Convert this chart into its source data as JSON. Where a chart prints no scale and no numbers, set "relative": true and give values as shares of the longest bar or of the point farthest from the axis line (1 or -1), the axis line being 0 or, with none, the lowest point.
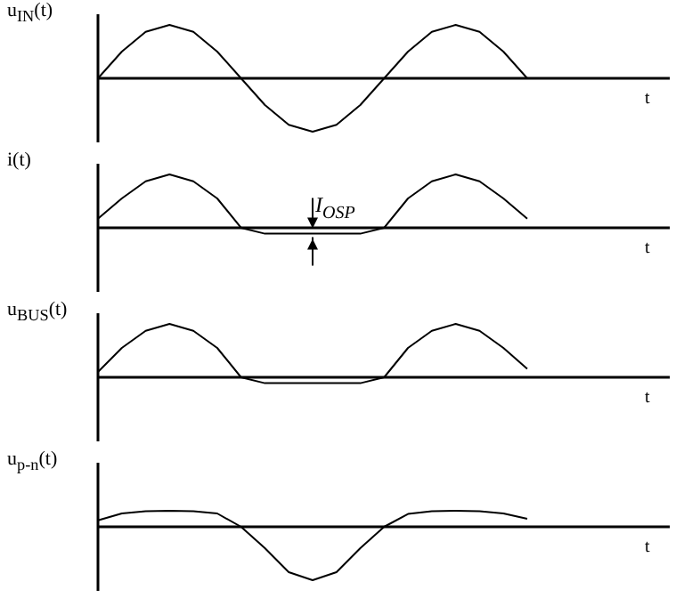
{
  "chart_data": [
    {
      "type": "line",
      "relative": true,
      "ylabel": "u$_{IN}$(t)",
      "xlabel": "t",
      "categories": [
        null,
        null,
        null,
        null,
        null,
        null,
        null,
        null,
        null,
        null,
        null,
        null,
        null,
        null,
        null,
        null,
        null,
        null,
        null
      ],
      "series": [
        {
          "color": "#000000",
          "values": [
            0,
            0.5,
            0.87,
            1,
            0.87,
            0.5,
            0,
            -0.5,
            -0.87,
            -1,
            -0.87,
            -0.5,
            0,
            0.5,
            0.87,
            1,
            0.87,
            0.5,
            0
          ]
        }
      ],
      "marker": "none",
      "line_style": "solid"
    },
    {
      "type": "line",
      "relative": true,
      "ylabel": "i(t)",
      "xlabel": "t",
      "categories": [
        null,
        null,
        null,
        null,
        null,
        null,
        null,
        null,
        null,
        null,
        null,
        null,
        null,
        null,
        null,
        null,
        null,
        null,
        null
      ],
      "series": [
        {
          "color": "#000000",
          "values": [
            0.17,
            0.55,
            0.87,
            1,
            0.87,
            0.55,
            0,
            -0.11,
            -0.11,
            -0.11,
            -0.11,
            -0.11,
            0,
            0.55,
            0.87,
            1,
            0.87,
            0.55,
            0.17
          ]
        }
      ],
      "annotations": [
        {
          "text": "I$_{OSP}$",
          "y": -0.11
        }
      ],
      "marker": "none",
      "line_style": "solid"
    },
    {
      "type": "line",
      "relative": true,
      "ylabel": "u$_{BUS}$(t)",
      "xlabel": "t",
      "categories": [
        null,
        null,
        null,
        null,
        null,
        null,
        null,
        null,
        null,
        null,
        null,
        null,
        null,
        null,
        null,
        null,
        null,
        null,
        null
      ],
      "series": [
        {
          "color": "#000000",
          "values": [
            0.1,
            0.55,
            0.87,
            1,
            0.87,
            0.55,
            0,
            -0.11,
            -0.11,
            -0.11,
            -0.11,
            -0.11,
            0,
            0.55,
            0.87,
            1,
            0.87,
            0.55,
            0.16
          ]
        }
      ],
      "marker": "none",
      "line_style": "solid"
    },
    {
      "type": "line",
      "relative": true,
      "ylabel": "u$_{p-n}$(t)",
      "xlabel": "t",
      "categories": [
        null,
        null,
        null,
        null,
        null,
        null,
        null,
        null,
        null,
        null,
        null,
        null,
        null,
        null,
        null,
        null,
        null,
        null,
        null
      ],
      "series": [
        {
          "color": "#000000",
          "values": [
            0.12,
            0.25,
            0.29,
            0.3,
            0.29,
            0.25,
            0,
            -0.4,
            -0.85,
            -1,
            -0.85,
            -0.4,
            0,
            0.24,
            0.29,
            0.3,
            0.29,
            0.25,
            0.15
          ]
        }
      ],
      "marker": "none",
      "line_style": "solid"
    }
  ]
}
